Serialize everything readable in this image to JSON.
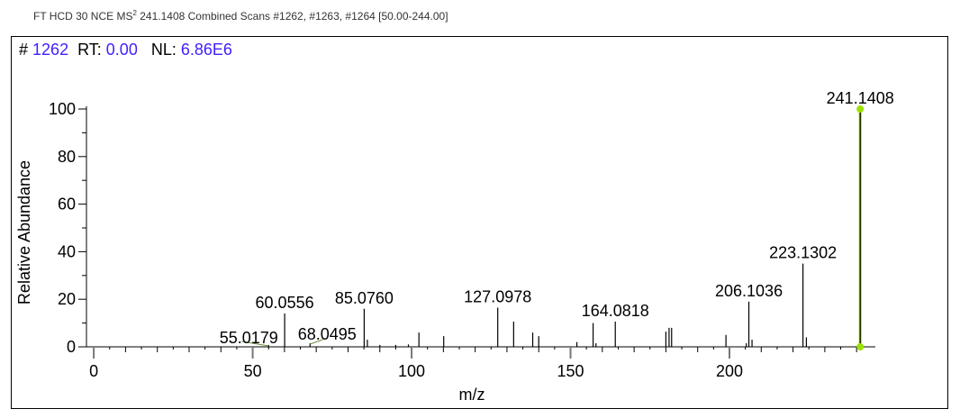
{
  "header": {
    "prefix": "FT HCD 30 NCE MS",
    "superscript": "2",
    "suffix": " 241.1408 Combined Scans #1262, #1263, #1264 [50.00-244.00]"
  },
  "scan_info": {
    "scan_label": "#",
    "scan_number": "1262",
    "rt_label": "RT:",
    "rt_value": "0.00",
    "nl_label": "NL:",
    "nl_value": "6.86E6"
  },
  "colors": {
    "info_value": "#3f1fff",
    "base_peak_marker": "#9be000",
    "label_leader": "#6a8a3a"
  },
  "chart_data": {
    "type": "bar",
    "subtype": "mass-spectrum-stick",
    "xlabel": "m/z",
    "ylabel": "Relative Abundance",
    "xlim": [
      -2.3,
      245.9
    ],
    "ylim": [
      0,
      100
    ],
    "xticks": [
      0,
      50,
      100,
      150,
      200
    ],
    "yticks": [
      0,
      20,
      40,
      60,
      80,
      100
    ],
    "grid": false,
    "peaks": [
      {
        "mz": 55.0179,
        "y": 0.8,
        "label": "55.0179"
      },
      {
        "mz": 60.0556,
        "y": 14,
        "label": "60.0556"
      },
      {
        "mz": 68.0495,
        "y": 1.5,
        "label": "68.0495"
      },
      {
        "mz": 85.076,
        "y": 16,
        "label": "85.0760"
      },
      {
        "mz": 86.08,
        "y": 3
      },
      {
        "mz": 90.0,
        "y": 0.8
      },
      {
        "mz": 95.0,
        "y": 0.8
      },
      {
        "mz": 99.0,
        "y": 1.0
      },
      {
        "mz": 102.3,
        "y": 6
      },
      {
        "mz": 110.1,
        "y": 4.5
      },
      {
        "mz": 127.0978,
        "y": 16.5,
        "label": "127.0978"
      },
      {
        "mz": 132.1,
        "y": 10.6
      },
      {
        "mz": 138.1,
        "y": 6
      },
      {
        "mz": 140.0,
        "y": 4.5
      },
      {
        "mz": 152.0,
        "y": 2
      },
      {
        "mz": 157.1,
        "y": 10
      },
      {
        "mz": 158.0,
        "y": 1.5
      },
      {
        "mz": 164.0818,
        "y": 10.6,
        "label": "164.0818"
      },
      {
        "mz": 180.0,
        "y": 6.4
      },
      {
        "mz": 181.0,
        "y": 8
      },
      {
        "mz": 181.8,
        "y": 8
      },
      {
        "mz": 198.9,
        "y": 5
      },
      {
        "mz": 205.3,
        "y": 1.5
      },
      {
        "mz": 206.1036,
        "y": 19,
        "label": "206.1036"
      },
      {
        "mz": 207.1,
        "y": 3
      },
      {
        "mz": 223.1302,
        "y": 35,
        "label": "223.1302"
      },
      {
        "mz": 224.2,
        "y": 4
      },
      {
        "mz": 241.1408,
        "y": 100,
        "label": "241.1408",
        "base_peak": true
      }
    ]
  }
}
